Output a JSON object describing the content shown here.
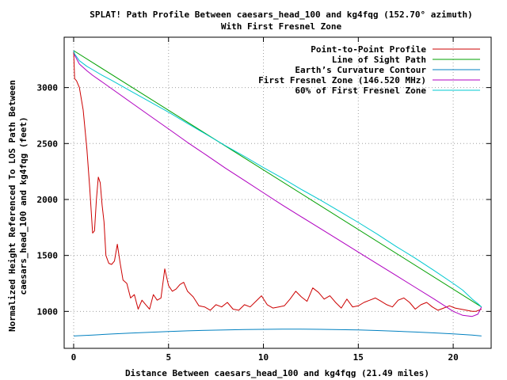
{
  "chart_data": {
    "type": "line",
    "title_line1": "SPLAT! Path Profile Between caesars_head_100 and kg4fqg (152.70° azimuth)",
    "title_line2": "With First Fresnel Zone",
    "xlabel": "Distance Between caesars_head_100 and kg4fqg (21.49 miles)",
    "ylabel_line1": "Normalized Height Referenced To LOS Path Between",
    "ylabel_line2": "caesars_head_100 and kg4fqg (feet)",
    "xlim": [
      -0.5,
      22
    ],
    "ylim": [
      670,
      3450
    ],
    "xticks": [
      0,
      5,
      10,
      15,
      20
    ],
    "yticks": [
      1000,
      1500,
      2000,
      2500,
      3000
    ],
    "grid": true,
    "legend_position": "top-right",
    "colors": {
      "profile": "#cc0000",
      "los": "#00a000",
      "earth": "#0080c0",
      "fresnel": "#b000c0",
      "fresnel60": "#00c8d0"
    },
    "series": [
      {
        "key": "profile",
        "name": "Point-to-Point Profile",
        "x": [
          0,
          0.05,
          0.15,
          0.3,
          0.5,
          0.7,
          0.85,
          1.0,
          1.1,
          1.2,
          1.3,
          1.4,
          1.5,
          1.6,
          1.7,
          1.85,
          2.0,
          2.15,
          2.3,
          2.45,
          2.6,
          2.8,
          3.0,
          3.2,
          3.4,
          3.6,
          3.8,
          4.0,
          4.2,
          4.4,
          4.6,
          4.8,
          5.0,
          5.2,
          5.4,
          5.6,
          5.8,
          6.0,
          6.3,
          6.6,
          6.9,
          7.2,
          7.5,
          7.8,
          8.1,
          8.4,
          8.7,
          9.0,
          9.3,
          9.6,
          9.9,
          10.2,
          10.5,
          10.8,
          11.1,
          11.4,
          11.7,
          12.0,
          12.3,
          12.6,
          12.9,
          13.2,
          13.5,
          13.8,
          14.1,
          14.4,
          14.7,
          15.0,
          15.3,
          15.6,
          15.9,
          16.2,
          16.5,
          16.8,
          17.1,
          17.4,
          17.7,
          18.0,
          18.3,
          18.6,
          18.9,
          19.2,
          19.5,
          19.8,
          20.1,
          20.4,
          20.7,
          21.0,
          21.2,
          21.35,
          21.49
        ],
        "y": [
          3320,
          3080,
          3060,
          3000,
          2800,
          2450,
          2100,
          1700,
          1720,
          2000,
          2200,
          2150,
          1950,
          1800,
          1500,
          1430,
          1420,
          1450,
          1600,
          1430,
          1280,
          1250,
          1120,
          1150,
          1020,
          1100,
          1060,
          1020,
          1150,
          1100,
          1120,
          1380,
          1230,
          1180,
          1200,
          1240,
          1260,
          1180,
          1130,
          1050,
          1040,
          1010,
          1060,
          1040,
          1080,
          1020,
          1010,
          1060,
          1040,
          1090,
          1140,
          1060,
          1030,
          1040,
          1050,
          1110,
          1180,
          1130,
          1090,
          1210,
          1170,
          1110,
          1140,
          1080,
          1030,
          1110,
          1040,
          1050,
          1080,
          1100,
          1120,
          1090,
          1060,
          1040,
          1100,
          1120,
          1080,
          1020,
          1060,
          1080,
          1040,
          1010,
          1030,
          1050,
          1030,
          1020,
          1010,
          1000,
          1000,
          1010,
          1020
        ]
      },
      {
        "key": "los",
        "name": "Line of Sight Path",
        "x": [
          0,
          21.49
        ],
        "y": [
          3330,
          1040
        ]
      },
      {
        "key": "earth",
        "name": "Earth’s Curvature Contour",
        "x": [
          0,
          1,
          2,
          3,
          4,
          5,
          6,
          7,
          8,
          9,
          10,
          11,
          12,
          13,
          14,
          15,
          16,
          17,
          18,
          19,
          20,
          21,
          21.49
        ],
        "y": [
          780,
          789,
          798,
          806,
          813,
          820,
          826,
          831,
          835,
          838,
          840,
          841,
          841,
          840,
          837,
          834,
          829,
          823,
          816,
          808,
          799,
          789,
          780
        ]
      },
      {
        "key": "fresnel",
        "name": "First Fresnel Zone (146.520 MHz)",
        "x": [
          0,
          0.05,
          0.3,
          0.7,
          1,
          1.5,
          2,
          3,
          4,
          5,
          6,
          7,
          8,
          9,
          10,
          11,
          12,
          13,
          14,
          15,
          16,
          17,
          18,
          19,
          20,
          20.5,
          21,
          21.3,
          21.49
        ],
        "y": [
          3330,
          3290,
          3210,
          3150,
          3110,
          3050,
          2990,
          2870,
          2750,
          2630,
          2510,
          2395,
          2280,
          2170,
          2060,
          1950,
          1845,
          1740,
          1635,
          1530,
          1425,
          1320,
          1215,
          1110,
          1000,
          965,
          955,
          975,
          1040
        ]
      },
      {
        "key": "fresnel60",
        "name": "60% of First Fresnel Zone",
        "x": [
          0,
          0.05,
          0.3,
          0.7,
          1,
          1.5,
          2,
          3,
          4,
          5,
          6,
          7,
          8,
          9,
          10,
          11,
          12,
          13,
          14,
          15,
          16,
          17,
          18,
          19,
          20,
          20.5,
          21,
          21.3,
          21.49
        ],
        "y": [
          3330,
          3300,
          3240,
          3190,
          3160,
          3110,
          3065,
          2970,
          2875,
          2780,
          2680,
          2580,
          2480,
          2385,
          2285,
          2190,
          2090,
          1995,
          1895,
          1795,
          1690,
          1580,
          1475,
          1365,
          1250,
          1190,
          1110,
          1070,
          1040
        ]
      }
    ]
  }
}
